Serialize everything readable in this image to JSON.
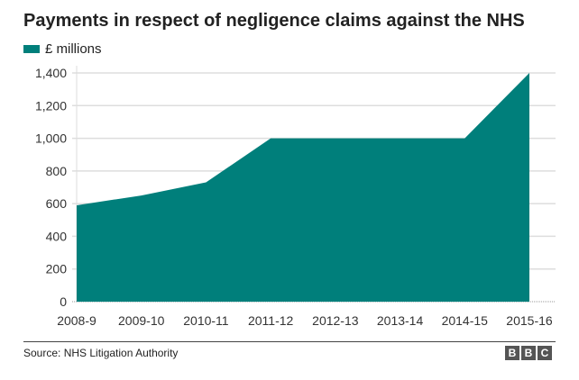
{
  "chart_data": {
    "type": "area",
    "title": "Payments in respect of negligence claims against the NHS",
    "legend": [
      {
        "name": "£ millions",
        "color": "#007f7b"
      }
    ],
    "legend_placement": "top-left",
    "categories": [
      "2008-9",
      "2009-10",
      "2010-11",
      "2011-12",
      "2012-13",
      "2013-14",
      "2014-15",
      "2015-16"
    ],
    "series": [
      {
        "name": "£ millions",
        "values": [
          590,
          650,
          730,
          1000,
          1000,
          1000,
          1000,
          1400
        ]
      }
    ],
    "ylim": [
      0,
      1400
    ],
    "yticks": [
      0,
      200,
      400,
      600,
      800,
      1000,
      1200,
      1400
    ],
    "ytick_labels": [
      "0",
      "200",
      "400",
      "600",
      "800",
      "1,000",
      "1,200",
      "1,400"
    ],
    "grid": true,
    "xlabel": "",
    "ylabel": ""
  },
  "footer": {
    "source": "Source: NHS Litigation Authority",
    "logo": [
      "B",
      "B",
      "C"
    ]
  }
}
